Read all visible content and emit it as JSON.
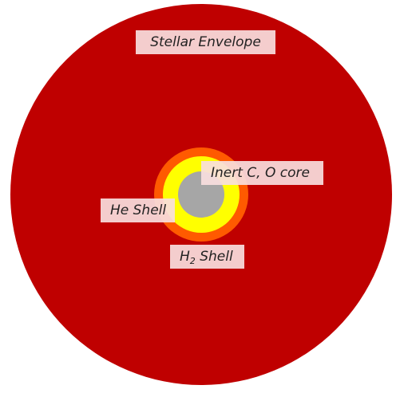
{
  "labels": {
    "envelope": "Stellar Envelope",
    "core": "Inert C, O core",
    "he_shell": "He Shell",
    "h2_shell_main": "H",
    "h2_shell_sub": "2",
    "h2_shell_tail": " Shell"
  },
  "colors": {
    "envelope": "#bf0000",
    "h2_shell": "#ff5a00",
    "he_shell": "#ffff00",
    "core": "#a6a6a6",
    "label_bg": "#f8dede"
  }
}
